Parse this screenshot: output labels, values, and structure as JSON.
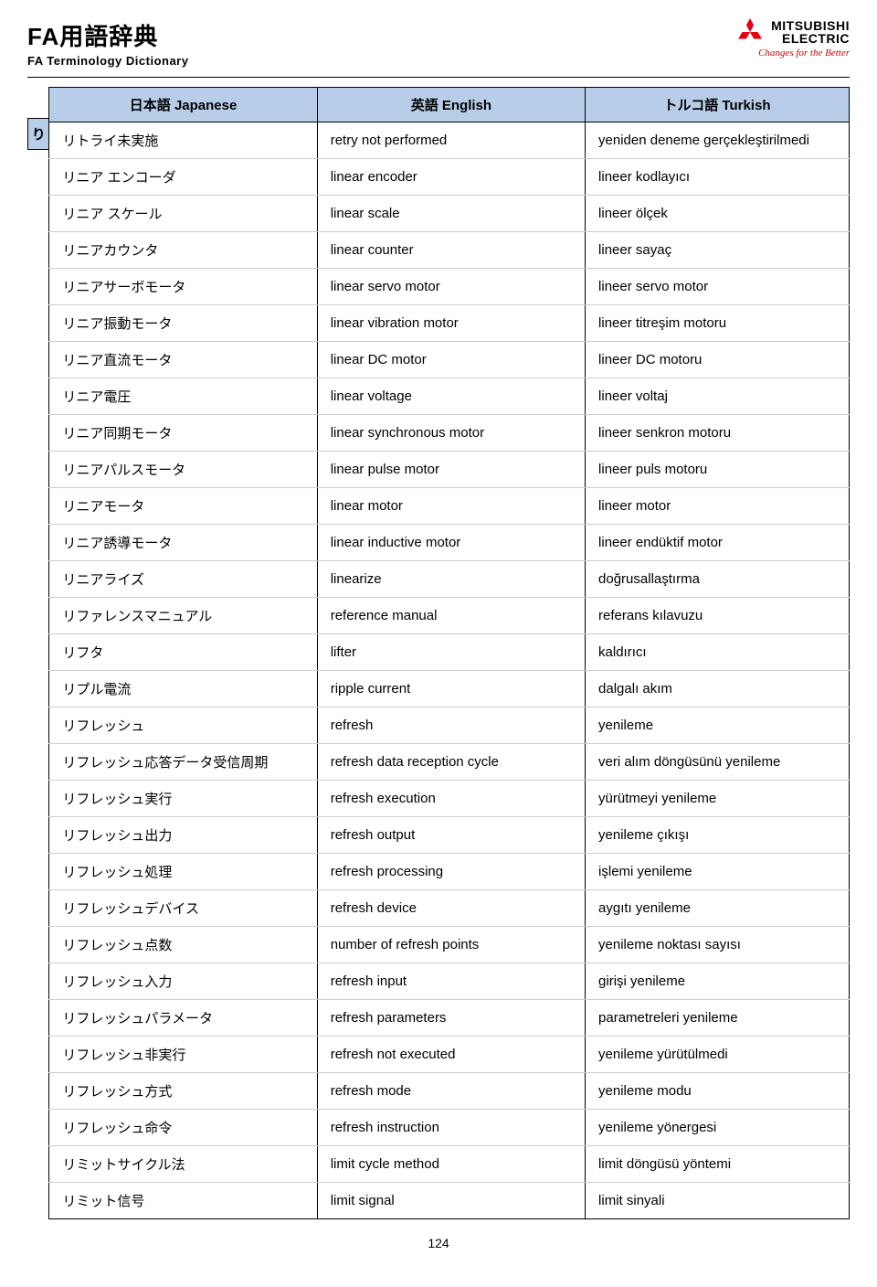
{
  "header": {
    "title_jp": "FA用語辞典",
    "title_en": "FA Terminology Dictionary",
    "logo_name_line1": "MITSUBISHI",
    "logo_name_line2": "ELECTRIC",
    "logo_tagline": "Changes for the Better",
    "logo_color": "#e60012"
  },
  "side_tab": "り",
  "columns": [
    "日本語 Japanese",
    "英語 English",
    "トルコ語 Turkish"
  ],
  "rows": [
    {
      "jp": "リトライ未実施",
      "en": "retry not performed",
      "tr": "yeniden deneme gerçekleştirilmedi"
    },
    {
      "jp": "リニア エンコーダ",
      "en": "linear encoder",
      "tr": "lineer kodlayıcı"
    },
    {
      "jp": "リニア スケール",
      "en": "linear scale",
      "tr": "lineer ölçek"
    },
    {
      "jp": "リニアカウンタ",
      "en": "linear counter",
      "tr": "lineer sayaç"
    },
    {
      "jp": "リニアサーボモータ",
      "en": "linear servo motor",
      "tr": "lineer servo motor"
    },
    {
      "jp": "リニア振動モータ",
      "en": "linear vibration motor",
      "tr": "lineer titreşim motoru"
    },
    {
      "jp": "リニア直流モータ",
      "en": "linear DC motor",
      "tr": "lineer DC motoru"
    },
    {
      "jp": "リニア電圧",
      "en": "linear voltage",
      "tr": "lineer voltaj"
    },
    {
      "jp": "リニア同期モータ",
      "en": "linear synchronous motor",
      "tr": "lineer senkron motoru"
    },
    {
      "jp": "リニアパルスモータ",
      "en": "linear pulse motor",
      "tr": "lineer puls motoru"
    },
    {
      "jp": "リニアモータ",
      "en": "linear motor",
      "tr": "lineer motor"
    },
    {
      "jp": "リニア誘導モータ",
      "en": "linear inductive motor",
      "tr": "lineer endüktif motor"
    },
    {
      "jp": "リニアライズ",
      "en": "linearize",
      "tr": "doğrusallaştırma"
    },
    {
      "jp": "リファレンスマニュアル",
      "en": "reference manual",
      "tr": "referans kılavuzu"
    },
    {
      "jp": "リフタ",
      "en": "lifter",
      "tr": "kaldırıcı"
    },
    {
      "jp": "リプル電流",
      "en": "ripple current",
      "tr": "dalgalı akım"
    },
    {
      "jp": "リフレッシュ",
      "en": "refresh",
      "tr": "yenileme"
    },
    {
      "jp": "リフレッシュ応答データ受信周期",
      "en": "refresh data reception cycle",
      "tr": "veri alım döngüsünü yenileme"
    },
    {
      "jp": "リフレッシュ実行",
      "en": "refresh execution",
      "tr": "yürütmeyi yenileme"
    },
    {
      "jp": "リフレッシュ出力",
      "en": "refresh output",
      "tr": "yenileme çıkışı"
    },
    {
      "jp": "リフレッシュ処理",
      "en": "refresh processing",
      "tr": "işlemi yenileme"
    },
    {
      "jp": "リフレッシュデバイス",
      "en": "refresh device",
      "tr": "aygıtı yenileme"
    },
    {
      "jp": "リフレッシュ点数",
      "en": "number of refresh points",
      "tr": "yenileme noktası sayısı"
    },
    {
      "jp": "リフレッシュ入力",
      "en": "refresh input",
      "tr": "girişi yenileme"
    },
    {
      "jp": "リフレッシュパラメータ",
      "en": "refresh parameters",
      "tr": "parametreleri yenileme"
    },
    {
      "jp": "リフレッシュ非実行",
      "en": "refresh not executed",
      "tr": "yenileme yürütülmedi"
    },
    {
      "jp": "リフレッシュ方式",
      "en": "refresh mode",
      "tr": "yenileme modu"
    },
    {
      "jp": "リフレッシュ命令",
      "en": "refresh instruction",
      "tr": "yenileme yönergesi"
    },
    {
      "jp": "リミットサイクル法",
      "en": "limit cycle method",
      "tr": "limit döngüsü yöntemi"
    },
    {
      "jp": "リミット信号",
      "en": "limit signal",
      "tr": "limit sinyali"
    }
  ],
  "page_number": "124",
  "style": {
    "header_bg": "#b7cde8",
    "border_color": "#000000",
    "row_border_color": "#cccccc",
    "body_bg": "#ffffff",
    "font_size_body": 15,
    "font_size_title": 26
  }
}
